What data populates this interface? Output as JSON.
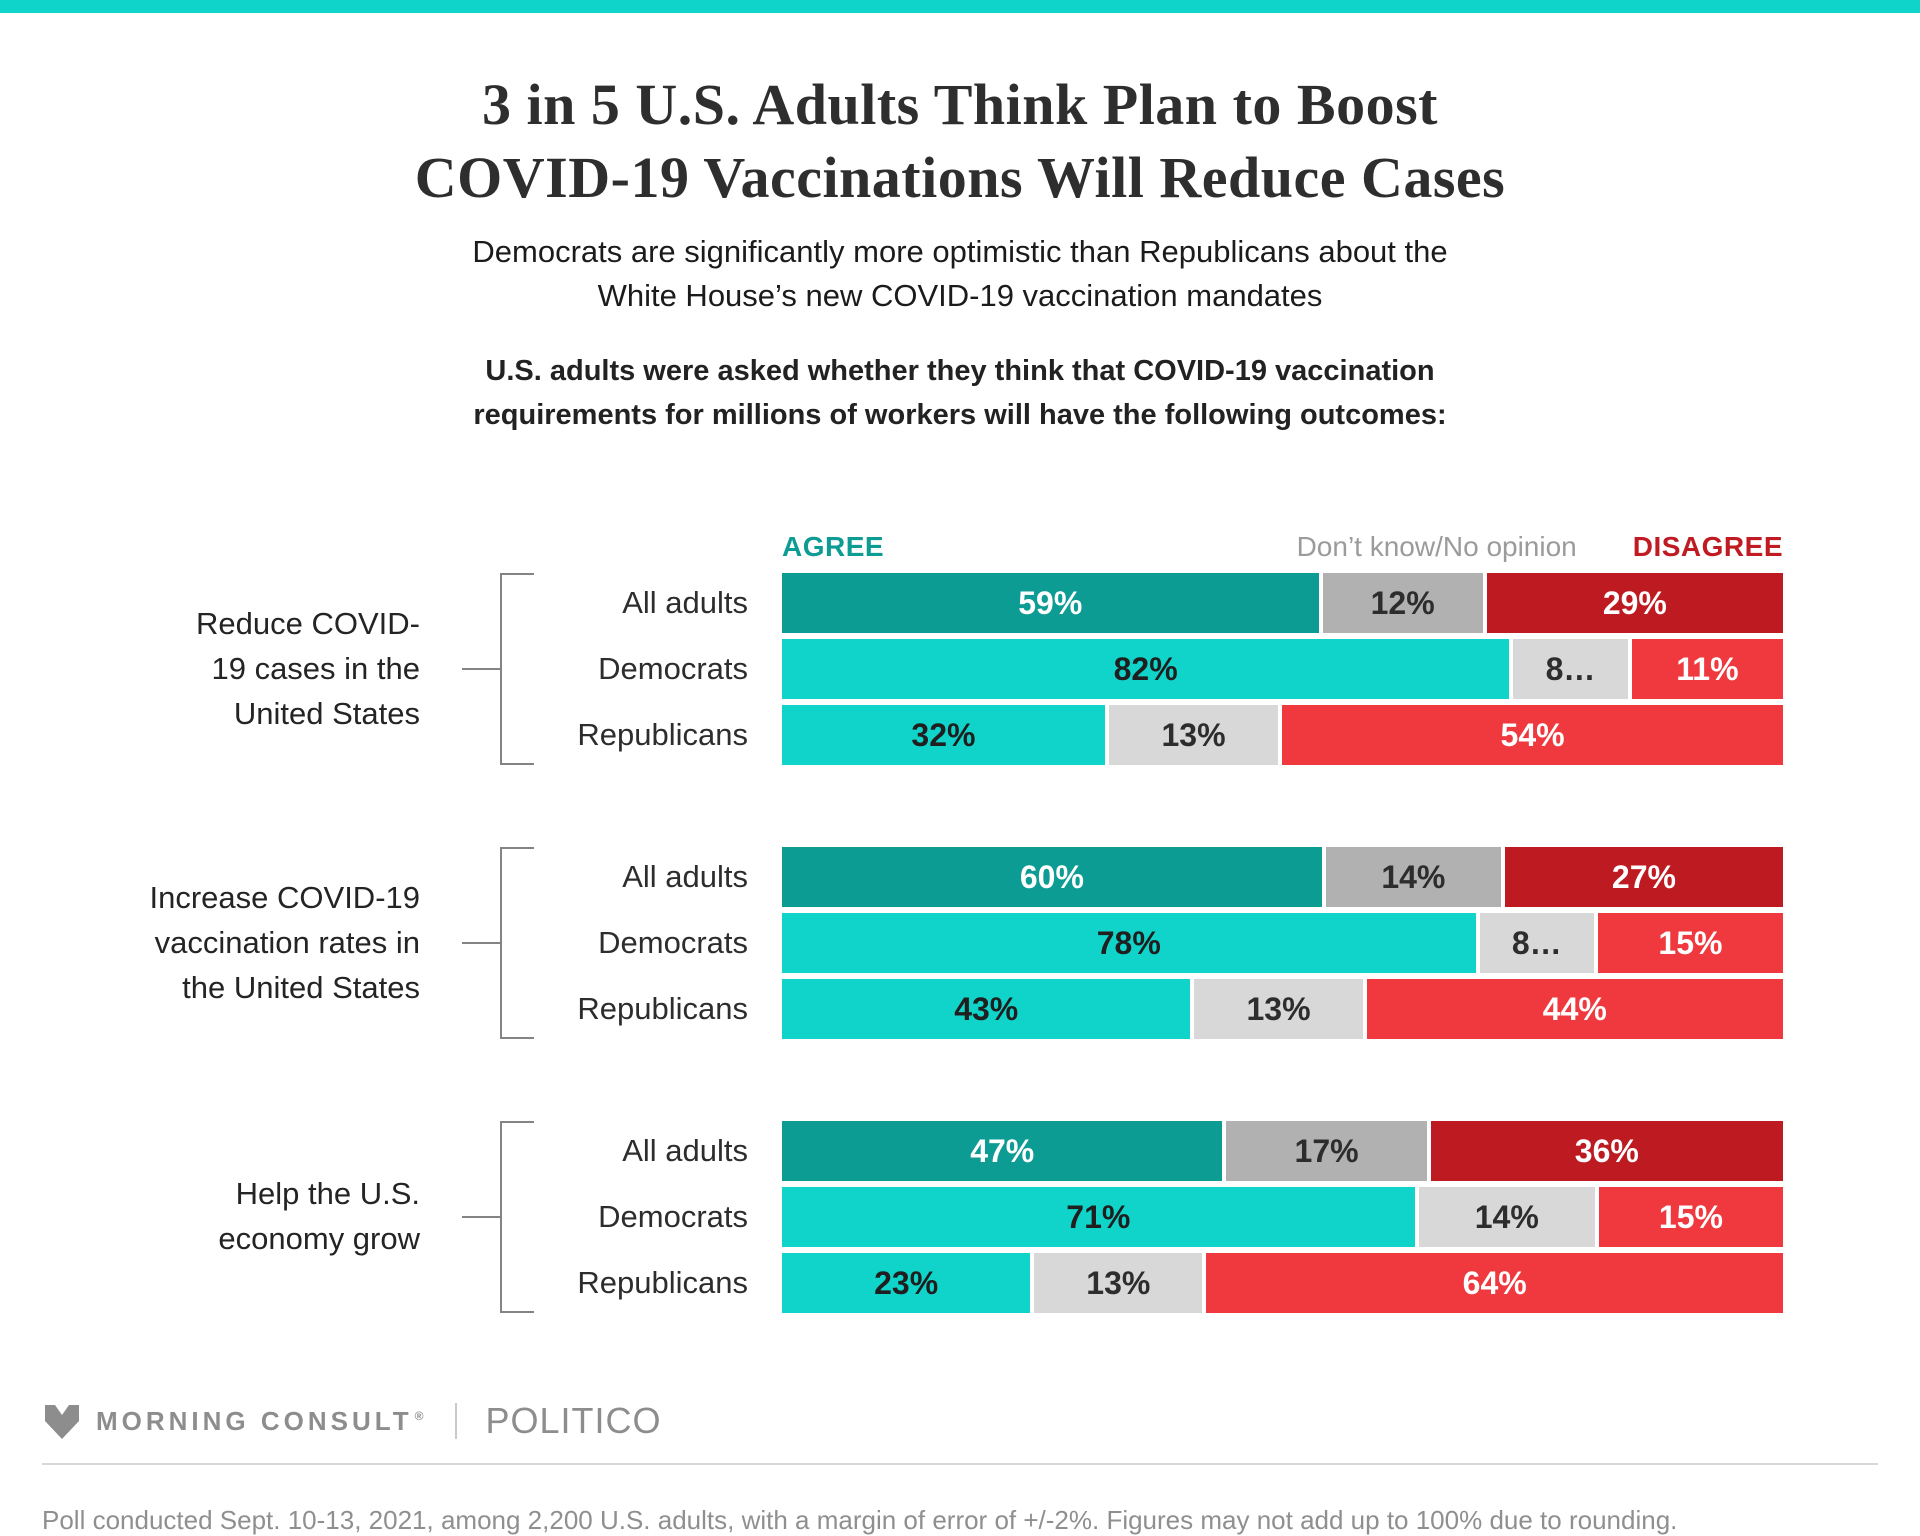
{
  "colors": {
    "accent_strip": "#0FD4C9",
    "agree_dark": "#0D9C94",
    "agree_bright": "#10D4C9",
    "neutral_dark": "#B1B1B1",
    "neutral_bright": "#D8D8D8",
    "disagree_dark": "#BE1A21",
    "disagree_bright": "#EF393E",
    "legend_agree_text": "#0D9C94",
    "legend_disagree_text": "#C01B22"
  },
  "header": {
    "title_lines": [
      "3 in 5 U.S. Adults Think Plan to Boost",
      "COVID-19 Vaccinations Will Reduce Cases"
    ],
    "subtitle_lines": [
      "Democrats are significantly more optimistic than Republicans about the",
      "White House’s new COVID-19 vaccination mandates"
    ],
    "question_lines": [
      "U.S. adults were asked whether they think that COVID-19 vaccination",
      "requirements for millions of workers will have the following outcomes:"
    ]
  },
  "legend": {
    "agree": "AGREE",
    "dont_know": "Don’t know/No opinion",
    "disagree": "DISAGREE"
  },
  "chart_data": {
    "type": "bar",
    "orientation": "horizontal-stacked",
    "unit": "%",
    "series_names": [
      "Agree",
      "Don't know/No opinion",
      "Disagree"
    ],
    "groups": [
      {
        "label": "Reduce COVID-\n19 cases in the\nUnited States",
        "rows": [
          {
            "label": "All adults",
            "variant": "dark",
            "values": [
              59,
              12,
              29
            ],
            "labels": [
              "59%",
              "12%",
              "29%"
            ]
          },
          {
            "label": "Democrats",
            "variant": "bright",
            "values": [
              82,
              8,
              11
            ],
            "labels": [
              "82%",
              "8…",
              "11%"
            ]
          },
          {
            "label": "Republicans",
            "variant": "bright",
            "values": [
              32,
              13,
              54
            ],
            "labels": [
              "32%",
              "13%",
              "54%"
            ]
          }
        ]
      },
      {
        "label": "Increase COVID-19\nvaccination rates in\nthe United States",
        "rows": [
          {
            "label": "All adults",
            "variant": "dark",
            "values": [
              60,
              14,
              27
            ],
            "labels": [
              "60%",
              "14%",
              "27%"
            ]
          },
          {
            "label": "Democrats",
            "variant": "bright",
            "values": [
              78,
              8,
              15
            ],
            "labels": [
              "78%",
              "8…",
              "15%"
            ]
          },
          {
            "label": "Republicans",
            "variant": "bright",
            "values": [
              43,
              13,
              44
            ],
            "labels": [
              "43%",
              "13%",
              "44%"
            ]
          }
        ]
      },
      {
        "label": "Help the U.S.\neconomy grow",
        "rows": [
          {
            "label": "All adults",
            "variant": "dark",
            "values": [
              47,
              17,
              36
            ],
            "labels": [
              "47%",
              "17%",
              "36%"
            ]
          },
          {
            "label": "Democrats",
            "variant": "bright",
            "values": [
              71,
              14,
              15
            ],
            "labels": [
              "71%",
              "14%",
              "15%"
            ]
          },
          {
            "label": "Republicans",
            "variant": "bright",
            "values": [
              23,
              13,
              64
            ],
            "labels": [
              "23%",
              "13%",
              "64%"
            ]
          }
        ]
      }
    ]
  },
  "footer": {
    "brand_left": "MORNING CONSULT",
    "brand_left_mark": "®",
    "brand_right": "POLITICO",
    "note": "Poll conducted Sept. 10-13, 2021, among 2,200 U.S. adults, with a margin of error of +/-2%. Figures may not add up to 100% due to rounding."
  }
}
